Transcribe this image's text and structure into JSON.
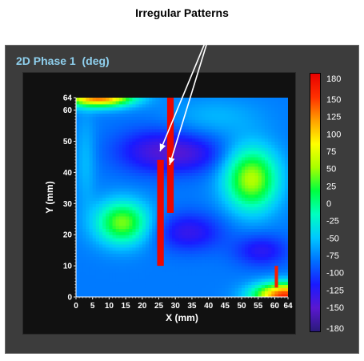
{
  "annotation": {
    "text": "Irregular Patterns"
  },
  "panel": {
    "title": "2D Phase 1",
    "unit": "(deg)"
  },
  "chart_data": {
    "type": "heatmap",
    "title": "2D Phase 1  (deg)",
    "xlabel": "X (mm)",
    "ylabel": "Y (mm)",
    "xlim": [
      0,
      64
    ],
    "ylim": [
      0,
      64
    ],
    "x_ticks": [
      "0",
      "5",
      "10",
      "15",
      "20",
      "25",
      "30",
      "35",
      "40",
      "45",
      "50",
      "55",
      "60",
      "64"
    ],
    "x_tick_values": [
      0,
      5,
      10,
      15,
      20,
      25,
      30,
      35,
      40,
      45,
      50,
      55,
      60,
      64
    ],
    "y_ticks": [
      "0",
      "10",
      "20",
      "30",
      "40",
      "50",
      "60",
      "64"
    ],
    "y_tick_values": [
      0,
      10,
      20,
      30,
      40,
      50,
      60,
      64
    ],
    "colorbar": {
      "min": -180,
      "max": 180,
      "ticks": [
        "180",
        "150",
        "125",
        "100",
        "75",
        "50",
        "25",
        "0",
        "-25",
        "-50",
        "-75",
        "-100",
        "-125",
        "-150",
        "-180"
      ],
      "tick_values": [
        180,
        150,
        125,
        100,
        75,
        50,
        25,
        0,
        -25,
        -50,
        -75,
        -100,
        -125,
        -150,
        -180
      ],
      "colors": [
        "#2a1a7a",
        "#5a18d0",
        "#1a1aff",
        "#0070ff",
        "#00c8ff",
        "#00ffc0",
        "#00ff40",
        "#a8ff00",
        "#ffff00",
        "#ffa000",
        "#ff3000",
        "#e80000"
      ]
    },
    "grid": false,
    "regions": [
      {
        "label": "green-upper-right",
        "value": 50,
        "x": [
          39,
          62
        ],
        "y": [
          22,
          54
        ]
      },
      {
        "label": "green-left",
        "value": 42,
        "x": [
          5,
          26
        ],
        "y": [
          14,
          35
        ]
      },
      {
        "label": "red-top-left-corner",
        "value": 170,
        "x": [
          0,
          22
        ],
        "y": [
          59,
          64
        ]
      },
      {
        "label": "red-bottom-right-corner",
        "value": 170,
        "x": [
          50,
          64
        ],
        "y": [
          0,
          8
        ]
      }
    ],
    "anomalies": [
      {
        "label": "stripe-1",
        "value": 175,
        "x": [
          24.5,
          26.5
        ],
        "y": [
          10,
          44
        ]
      },
      {
        "label": "stripe-2",
        "value": 175,
        "x": [
          27.5,
          29.5
        ],
        "y": [
          27,
          64
        ]
      },
      {
        "label": "stripe-3",
        "value": 160,
        "x": [
          60,
          61
        ],
        "y": [
          3,
          10
        ]
      }
    ]
  }
}
